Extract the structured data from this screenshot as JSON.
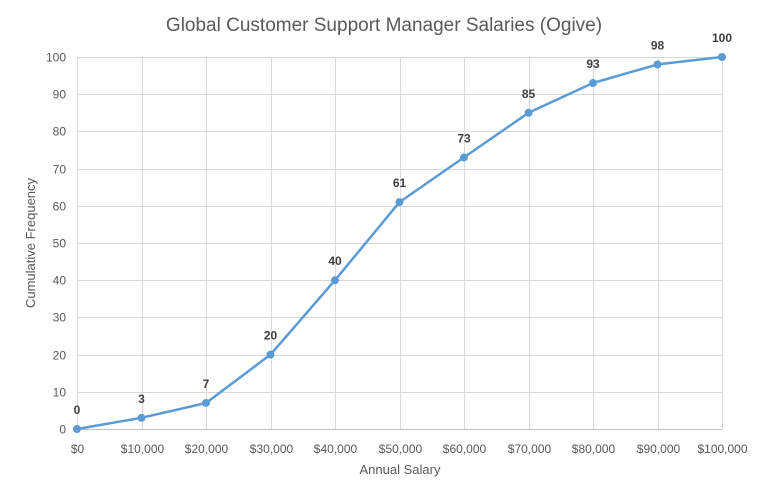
{
  "chart_data": {
    "type": "line",
    "title": "Global Customer Support Manager Salaries (Ogive)",
    "xlabel": "Annual Salary",
    "ylabel": "Cumulative Frequency",
    "categories": [
      "$0",
      "$10,000",
      "$20,000",
      "$30,000",
      "$40,000",
      "$50,000",
      "$60,000",
      "$70,000",
      "$80,000",
      "$90,000",
      "$100,000"
    ],
    "x": [
      0,
      10000,
      20000,
      30000,
      40000,
      50000,
      60000,
      70000,
      80000,
      90000,
      100000
    ],
    "series": [
      {
        "name": "Cumulative Frequency",
        "values": [
          0,
          3,
          7,
          20,
          40,
          61,
          73,
          85,
          93,
          98,
          100
        ],
        "color": "#5b9bd5",
        "markers": true,
        "data_labels": true
      }
    ],
    "ylim": [
      0,
      100
    ],
    "yticks": [
      0,
      10,
      20,
      30,
      40,
      50,
      60,
      70,
      80,
      90,
      100
    ],
    "grid": {
      "horizontal": true,
      "vertical": true
    },
    "legend": "none"
  },
  "colors": {
    "line": "#5b9bd5",
    "grid": "#d9d9d9",
    "text": "#595959",
    "label": "#404040"
  }
}
